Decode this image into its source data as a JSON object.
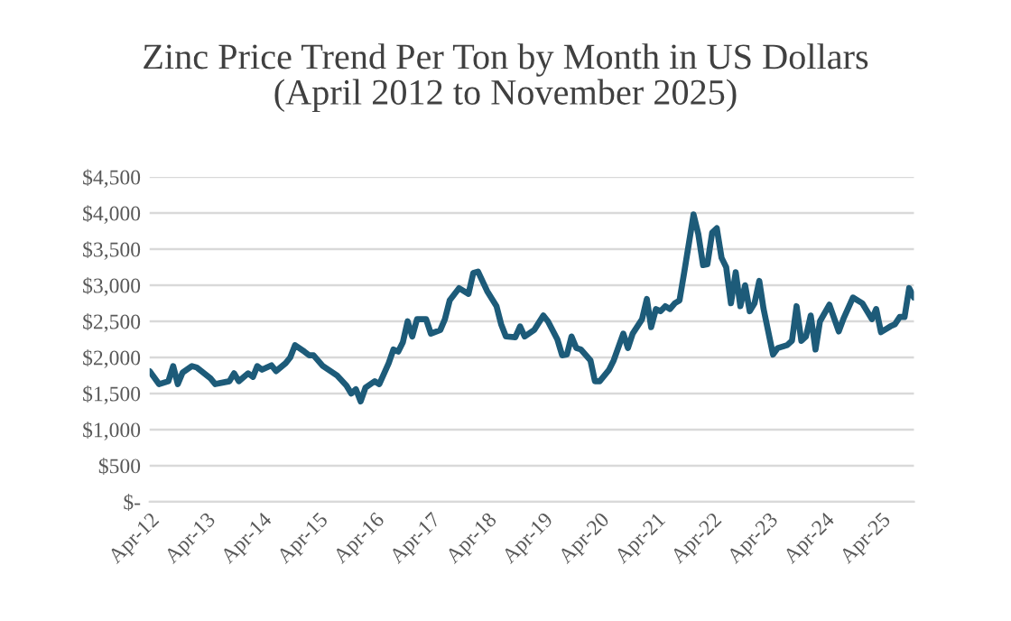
{
  "chart_data": {
    "type": "line",
    "title": "Zinc Price Trend Per Ton by Month in US Dollars\n(April 2012 to November 2025)",
    "x": [
      "2012-04",
      "2012-06",
      "2012-08",
      "2012-09",
      "2012-10",
      "2012-11",
      "2013-01",
      "2013-02",
      "2013-05",
      "2013-06",
      "2013-09",
      "2013-10",
      "2013-11",
      "2014-01",
      "2014-02",
      "2014-03",
      "2014-04",
      "2014-06",
      "2014-07",
      "2014-09",
      "2014-10",
      "2014-11",
      "2015-01",
      "2015-02",
      "2015-03",
      "2015-05",
      "2015-08",
      "2015-10",
      "2015-11",
      "2015-12",
      "2016-01",
      "2016-02",
      "2016-04",
      "2016-05",
      "2016-07",
      "2016-08",
      "2016-09",
      "2016-10",
      "2016-11",
      "2016-12",
      "2017-01",
      "2017-03",
      "2017-04",
      "2017-06",
      "2017-07",
      "2017-08",
      "2017-10",
      "2017-12",
      "2018-01",
      "2018-02",
      "2018-04",
      "2018-06",
      "2018-07",
      "2018-08",
      "2018-10",
      "2018-11",
      "2018-12",
      "2019-02",
      "2019-04",
      "2019-05",
      "2019-07",
      "2019-08",
      "2019-09",
      "2019-10",
      "2019-11",
      "2019-12",
      "2020-02",
      "2020-03",
      "2020-04",
      "2020-06",
      "2020-07",
      "2020-09",
      "2020-10",
      "2020-11",
      "2021-01",
      "2021-02",
      "2021-03",
      "2021-04",
      "2021-05",
      "2021-06",
      "2021-07",
      "2021-08",
      "2021-09",
      "2021-10",
      "2021-11",
      "2021-12",
      "2022-01",
      "2022-02",
      "2022-03",
      "2022-04",
      "2022-05",
      "2022-06",
      "2022-07",
      "2022-08",
      "2022-09",
      "2022-10",
      "2022-11",
      "2022-12",
      "2023-01",
      "2023-02",
      "2023-03",
      "2023-05",
      "2023-06",
      "2023-08",
      "2023-09",
      "2023-10",
      "2023-11",
      "2023-12",
      "2024-01",
      "2024-02",
      "2024-03",
      "2024-05",
      "2024-07",
      "2024-08",
      "2024-10",
      "2024-12",
      "2025-02",
      "2025-03",
      "2025-04",
      "2025-06",
      "2025-07",
      "2025-08",
      "2025-09",
      "2025-10",
      "2025-11"
    ],
    "values": [
      1810,
      1630,
      1670,
      1880,
      1630,
      1790,
      1880,
      1860,
      1710,
      1630,
      1670,
      1780,
      1670,
      1780,
      1730,
      1880,
      1830,
      1890,
      1810,
      1920,
      2000,
      2170,
      2080,
      2030,
      2030,
      1880,
      1750,
      1610,
      1500,
      1560,
      1390,
      1580,
      1670,
      1630,
      1920,
      2110,
      2080,
      2210,
      2500,
      2290,
      2530,
      2530,
      2330,
      2380,
      2530,
      2790,
      2960,
      2880,
      3170,
      3190,
      2920,
      2710,
      2460,
      2290,
      2280,
      2430,
      2290,
      2380,
      2580,
      2500,
      2250,
      2030,
      2040,
      2290,
      2130,
      2110,
      1960,
      1670,
      1670,
      1830,
      1960,
      2330,
      2130,
      2330,
      2530,
      2810,
      2420,
      2670,
      2640,
      2710,
      2670,
      2750,
      2790,
      3170,
      3580,
      3980,
      3710,
      3280,
      3290,
      3730,
      3790,
      3380,
      3250,
      2750,
      3180,
      2710,
      3000,
      2640,
      2750,
      3060,
      2670,
      2040,
      2130,
      2170,
      2230,
      2710,
      2230,
      2290,
      2580,
      2110,
      2500,
      2730,
      2360,
      2540,
      2830,
      2750,
      2530,
      2670,
      2350,
      2430,
      2460,
      2560,
      2560,
      2960,
      2830
    ],
    "color": "#1d5b79",
    "xlim": [
      "2012-04",
      "2025-11"
    ],
    "xticks": [
      {
        "value": "2012-04",
        "label": "Apr-12"
      },
      {
        "value": "2013-04",
        "label": "Apr-13"
      },
      {
        "value": "2014-04",
        "label": "Apr-14"
      },
      {
        "value": "2015-04",
        "label": "Apr-15"
      },
      {
        "value": "2016-04",
        "label": "Apr-16"
      },
      {
        "value": "2017-04",
        "label": "Apr-17"
      },
      {
        "value": "2018-04",
        "label": "Apr-18"
      },
      {
        "value": "2019-04",
        "label": "Apr-19"
      },
      {
        "value": "2020-04",
        "label": "Apr-20"
      },
      {
        "value": "2021-04",
        "label": "Apr-21"
      },
      {
        "value": "2022-04",
        "label": "Apr-22"
      },
      {
        "value": "2023-04",
        "label": "Apr-23"
      },
      {
        "value": "2024-04",
        "label": "Apr-24"
      },
      {
        "value": "2025-04",
        "label": "Apr-25"
      }
    ],
    "ylim": [
      0,
      4500
    ],
    "yticks": [
      {
        "value": 0,
        "label": "$-"
      },
      {
        "value": 500,
        "label": "$500"
      },
      {
        "value": 1000,
        "label": "$1,000"
      },
      {
        "value": 1500,
        "label": "$1,500"
      },
      {
        "value": 2000,
        "label": "$2,000"
      },
      {
        "value": 2500,
        "label": "$2,500"
      },
      {
        "value": 3000,
        "label": "$3,000"
      },
      {
        "value": 3500,
        "label": "$3,500"
      },
      {
        "value": 4000,
        "label": "$4,000"
      },
      {
        "value": 4500,
        "label": "$4,500"
      }
    ],
    "grid": "y",
    "legend": false,
    "marker": "none",
    "line_style": "solid"
  }
}
